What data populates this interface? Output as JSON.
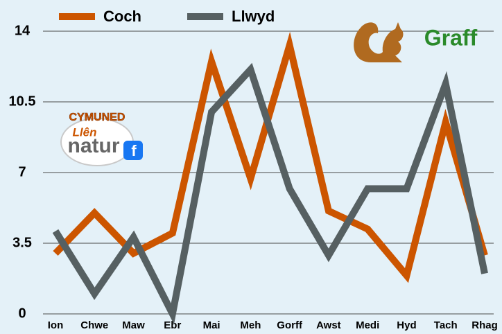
{
  "chart_data": {
    "type": "line",
    "categories": [
      "Ion",
      "Chwe",
      "Maw",
      "Ebr",
      "Mai",
      "Meh",
      "Gorff",
      "Awst",
      "Medi",
      "Hyd",
      "Tach",
      "Rhag"
    ],
    "series": [
      {
        "name": "Coch",
        "color": "#cc5500",
        "values": [
          3,
          5,
          3,
          4,
          12.5,
          6.7,
          13.3,
          5.1,
          4.2,
          1.9,
          9.5,
          2.9
        ]
      },
      {
        "name": "Llwyd",
        "color": "#566062",
        "values": [
          4.1,
          1,
          3.8,
          0,
          10,
          12.1,
          6.2,
          2.9,
          6.2,
          6.2,
          11.4,
          2
        ]
      }
    ],
    "ylim": [
      0,
      14
    ],
    "yticks": [
      0,
      3.5,
      7,
      10.5,
      14
    ],
    "grid": true,
    "annotations": [
      "CYMUNED",
      "Llên",
      "natur",
      "Graff"
    ]
  }
}
